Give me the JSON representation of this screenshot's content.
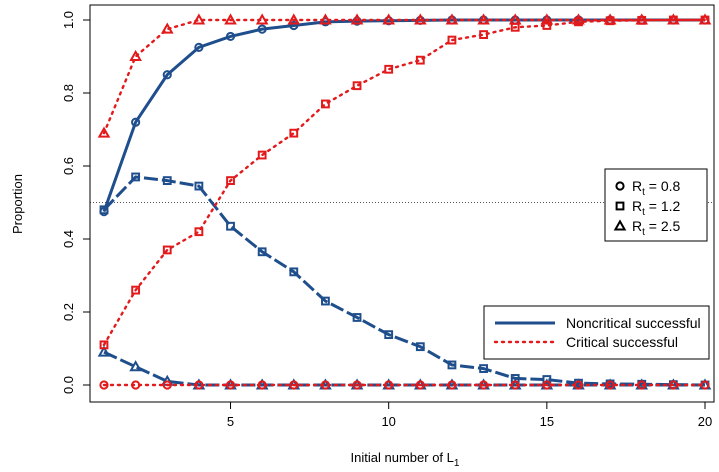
{
  "chart_data": {
    "type": "line",
    "xlabel": "Initial number of L",
    "xlabel_sub": "1",
    "ylabel": "Proportion",
    "xlim": [
      1,
      20
    ],
    "ylim": [
      0,
      1
    ],
    "x_ticks": [
      5,
      10,
      15,
      20
    ],
    "x_tick_labels": [
      "5",
      "10",
      "15",
      "20"
    ],
    "y_ticks": [
      0,
      0.2,
      0.4,
      0.6,
      0.8,
      1.0
    ],
    "y_tick_labels": [
      "0.0",
      "0.2",
      "0.4",
      "0.6",
      "0.8",
      "1.0"
    ],
    "reference_line": 0.5,
    "grid": false,
    "x": [
      1,
      2,
      3,
      4,
      5,
      6,
      7,
      8,
      9,
      10,
      11,
      12,
      13,
      14,
      15,
      16,
      17,
      18,
      19,
      20
    ],
    "series": [
      {
        "group": "noncritical",
        "marker": "circle",
        "color": "#1f4e8c",
        "line": "solid",
        "values": [
          0.475,
          0.72,
          0.85,
          0.925,
          0.955,
          0.975,
          0.985,
          0.995,
          0.997,
          0.998,
          0.999,
          1.0,
          1.0,
          1.0,
          1.0,
          1.0,
          1.0,
          1.0,
          1.0,
          1.0
        ]
      },
      {
        "group": "noncritical",
        "marker": "square",
        "color": "#1f4e8c",
        "line": "dashed",
        "values": [
          0.48,
          0.57,
          0.56,
          0.545,
          0.435,
          0.365,
          0.31,
          0.23,
          0.185,
          0.138,
          0.105,
          0.055,
          0.045,
          0.018,
          0.015,
          0.005,
          0.003,
          0.002,
          0.001,
          0.0
        ]
      },
      {
        "group": "noncritical",
        "marker": "triangle",
        "color": "#1f4e8c",
        "line": "dashed",
        "values": [
          0.09,
          0.05,
          0.01,
          0.0,
          0.0,
          0.0,
          0.0,
          0.0,
          0.0,
          0.0,
          0.0,
          0.0,
          0.0,
          0.0,
          0.0,
          0.0,
          0.0,
          0.0,
          0.0,
          0.0
        ]
      },
      {
        "group": "critical",
        "marker": "circle",
        "color": "#e31a1c",
        "line": "dotted",
        "values": [
          0.0,
          0.0,
          0.0,
          0.0,
          0.0,
          0.0,
          0.0,
          0.0,
          0.0,
          0.0,
          0.0,
          0.0,
          0.0,
          0.0,
          0.0,
          0.0,
          0.0,
          0.0,
          0.0,
          0.0
        ]
      },
      {
        "group": "critical",
        "marker": "square",
        "color": "#e31a1c",
        "line": "dotted",
        "values": [
          0.11,
          0.26,
          0.37,
          0.42,
          0.56,
          0.63,
          0.69,
          0.77,
          0.82,
          0.865,
          0.89,
          0.945,
          0.96,
          0.98,
          0.985,
          0.995,
          0.998,
          0.999,
          1.0,
          1.0
        ]
      },
      {
        "group": "critical",
        "marker": "triangle",
        "color": "#e31a1c",
        "line": "dotted",
        "values": [
          0.69,
          0.9,
          0.975,
          1.0,
          1.0,
          1.0,
          1.0,
          1.0,
          1.0,
          1.0,
          1.0,
          1.0,
          1.0,
          1.0,
          1.0,
          1.0,
          1.0,
          1.0,
          1.0,
          1.0
        ]
      }
    ],
    "legend_markers": {
      "placement": "right",
      "entries": [
        {
          "marker": "circle",
          "label_main": "R",
          "label_sub": "t",
          "label_rest": " = 0.8"
        },
        {
          "marker": "square",
          "label_main": "R",
          "label_sub": "t",
          "label_rest": " = 1.2"
        },
        {
          "marker": "triangle",
          "label_main": "R",
          "label_sub": "t",
          "label_rest": " = 2.5"
        }
      ]
    },
    "legend_lines": {
      "placement": "bottom-right",
      "entries": [
        {
          "label": "Noncritical successful",
          "color": "#1f4e8c",
          "line": "solid"
        },
        {
          "label": "Critical successful",
          "color": "#e31a1c",
          "line": "dotted"
        }
      ]
    }
  }
}
